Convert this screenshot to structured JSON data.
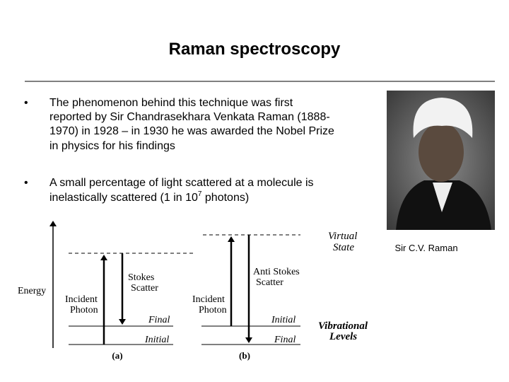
{
  "title": "Raman spectroscopy",
  "bullets": [
    {
      "marker": "•",
      "lines": [
        "The phenomenon behind this technique was first",
        "reported by Sir Chandrasekhara Venkata Raman (1888-",
        "1970) in 1928 – in 1930 he was awarded the Nobel Prize",
        "in physics for his findings"
      ]
    },
    {
      "marker": "•",
      "line1": "A small percentage of light scattered at a molecule is",
      "line2_before": "inelastically scattered (1 in 10",
      "superscript": "7",
      "line2_after": " photons)"
    }
  ],
  "photo_caption": "Sir C.V. Raman",
  "diagram": {
    "energy_label": "Energy",
    "virtual_state": [
      "Virtual",
      "State"
    ],
    "vibrational_levels": [
      "Vibrational",
      "Levels"
    ],
    "panel_a": {
      "incident": [
        "Incident",
        "Photon"
      ],
      "scatter": [
        "Stokes",
        "Scatter"
      ],
      "upper_level": "Final",
      "lower_level": "Initial",
      "caption": "(a)"
    },
    "panel_b": {
      "incident": [
        "Incident",
        "Photon"
      ],
      "scatter": [
        "Anti Stokes",
        "Scatter"
      ],
      "upper_level": "Initial",
      "lower_level": "Final",
      "caption": "(b)"
    }
  }
}
